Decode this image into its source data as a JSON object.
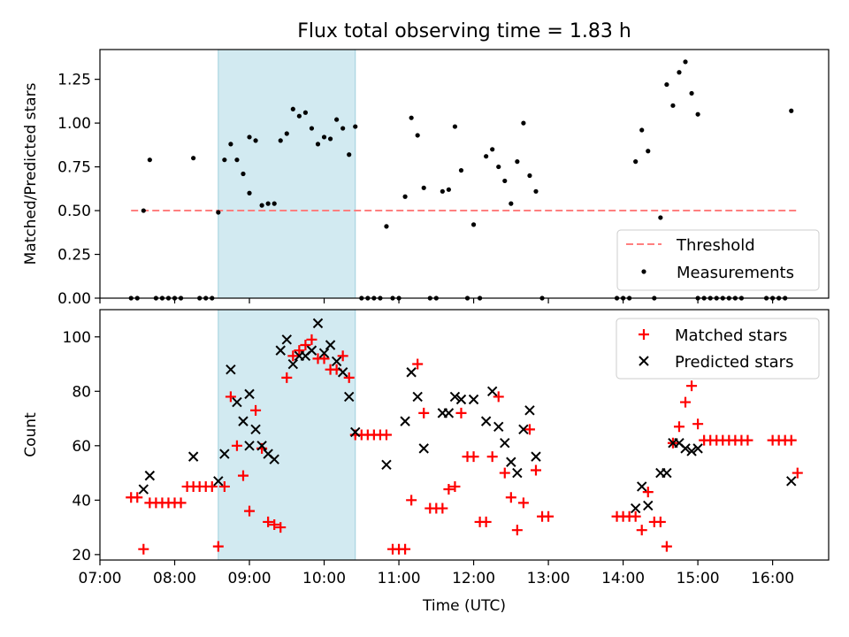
{
  "figure": {
    "title": "Flux total observing time = 1.83 h",
    "highlight_color": "#add8e6",
    "highlight_span": [
      "08:35",
      "10:25"
    ]
  },
  "chart_data": [
    {
      "id": "ratio",
      "type": "scatter",
      "ylabel": "Matched/Predicted stars",
      "xlim": [
        "07:00",
        "16:45"
      ],
      "ylim": [
        0,
        1.42
      ],
      "yticks": [
        0.0,
        0.25,
        0.5,
        0.75,
        1.0,
        1.25
      ],
      "ytick_labels": [
        "0.00",
        "0.25",
        "0.50",
        "0.75",
        "1.00",
        "1.25"
      ],
      "legend_placement": "lower-right",
      "threshold": {
        "name": "Threshold",
        "value": 0.5,
        "x": [
          "07:25",
          "16:20"
        ],
        "color": "#ff7f7f",
        "style": "dashed"
      },
      "series": [
        {
          "name": "Measurements",
          "color": "#000000",
          "marker": "dot",
          "points": [
            [
              "07:25",
              0
            ],
            [
              "07:30",
              0
            ],
            [
              "07:35",
              0.5
            ],
            [
              "07:40",
              0.79
            ],
            [
              "07:45",
              0
            ],
            [
              "07:50",
              0
            ],
            [
              "07:55",
              0
            ],
            [
              "08:00",
              0
            ],
            [
              "08:05",
              0
            ],
            [
              "08:15",
              0.8
            ],
            [
              "08:20",
              0
            ],
            [
              "08:25",
              0
            ],
            [
              "08:30",
              0
            ],
            [
              "08:35",
              0.49
            ],
            [
              "08:40",
              0.79
            ],
            [
              "08:45",
              0.88
            ],
            [
              "08:50",
              0.79
            ],
            [
              "08:55",
              0.71
            ],
            [
              "09:00",
              0.6
            ],
            [
              "09:00",
              0.92
            ],
            [
              "09:05",
              0.9
            ],
            [
              "09:10",
              0.53
            ],
            [
              "09:15",
              0.54
            ],
            [
              "09:20",
              0.54
            ],
            [
              "09:25",
              0.9
            ],
            [
              "09:30",
              0.94
            ],
            [
              "09:35",
              1.08
            ],
            [
              "09:40",
              1.04
            ],
            [
              "09:45",
              1.06
            ],
            [
              "09:50",
              0.97
            ],
            [
              "09:55",
              0.88
            ],
            [
              "10:00",
              0.92
            ],
            [
              "10:05",
              0.91
            ],
            [
              "10:10",
              1.02
            ],
            [
              "10:15",
              0.97
            ],
            [
              "10:20",
              0.82
            ],
            [
              "10:25",
              0.98
            ],
            [
              "10:30",
              0
            ],
            [
              "10:35",
              0
            ],
            [
              "10:40",
              0
            ],
            [
              "10:45",
              0
            ],
            [
              "10:50",
              0.41
            ],
            [
              "10:55",
              0
            ],
            [
              "11:00",
              0
            ],
            [
              "11:05",
              0.58
            ],
            [
              "11:10",
              1.03
            ],
            [
              "11:15",
              0.93
            ],
            [
              "11:20",
              0.63
            ],
            [
              "11:25",
              0
            ],
            [
              "11:30",
              0
            ],
            [
              "11:35",
              0.61
            ],
            [
              "11:40",
              0.62
            ],
            [
              "11:45",
              0.98
            ],
            [
              "11:50",
              0.73
            ],
            [
              "11:55",
              0
            ],
            [
              "12:00",
              0.42
            ],
            [
              "12:05",
              0
            ],
            [
              "12:10",
              0.81
            ],
            [
              "12:15",
              0.85
            ],
            [
              "12:20",
              0.75
            ],
            [
              "12:25",
              0.67
            ],
            [
              "12:30",
              0.54
            ],
            [
              "12:35",
              0.78
            ],
            [
              "12:40",
              1.0
            ],
            [
              "12:45",
              0.7
            ],
            [
              "12:50",
              0.61
            ],
            [
              "12:55",
              0
            ],
            [
              "13:55",
              0
            ],
            [
              "14:00",
              0
            ],
            [
              "14:05",
              0
            ],
            [
              "14:10",
              0.78
            ],
            [
              "14:15",
              0.96
            ],
            [
              "14:20",
              0.84
            ],
            [
              "14:25",
              0
            ],
            [
              "14:30",
              0.46
            ],
            [
              "14:35",
              1.22
            ],
            [
              "14:40",
              1.1
            ],
            [
              "14:45",
              1.29
            ],
            [
              "14:50",
              1.35
            ],
            [
              "14:55",
              1.17
            ],
            [
              "15:00",
              1.05
            ],
            [
              "15:00",
              0
            ],
            [
              "15:05",
              0
            ],
            [
              "15:10",
              0
            ],
            [
              "15:15",
              0
            ],
            [
              "15:20",
              0
            ],
            [
              "15:25",
              0
            ],
            [
              "15:30",
              0
            ],
            [
              "15:35",
              0
            ],
            [
              "15:55",
              0
            ],
            [
              "16:00",
              0
            ],
            [
              "16:05",
              0
            ],
            [
              "16:10",
              0
            ],
            [
              "16:15",
              1.07
            ]
          ]
        }
      ]
    },
    {
      "id": "counts",
      "type": "scatter",
      "xlabel": "Time (UTC)",
      "ylabel": "Count",
      "xlim": [
        "07:00",
        "16:45"
      ],
      "ylim": [
        18,
        110
      ],
      "yticks": [
        20,
        40,
        60,
        80,
        100
      ],
      "ytick_labels": [
        "20",
        "40",
        "60",
        "80",
        "100"
      ],
      "xtick_labels": [
        "07:00",
        "08:00",
        "09:00",
        "10:00",
        "11:00",
        "12:00",
        "13:00",
        "14:00",
        "15:00",
        "16:00"
      ],
      "legend_placement": "top-right",
      "series": [
        {
          "name": "Matched stars",
          "color": "#ff0000",
          "marker": "plus",
          "points": [
            [
              "07:25",
              41
            ],
            [
              "07:30",
              41
            ],
            [
              "07:35",
              22
            ],
            [
              "07:40",
              39
            ],
            [
              "07:45",
              39
            ],
            [
              "07:50",
              39
            ],
            [
              "07:55",
              39
            ],
            [
              "08:00",
              39
            ],
            [
              "08:05",
              39
            ],
            [
              "08:10",
              45
            ],
            [
              "08:15",
              45
            ],
            [
              "08:20",
              45
            ],
            [
              "08:25",
              45
            ],
            [
              "08:30",
              45
            ],
            [
              "08:35",
              23
            ],
            [
              "08:40",
              45
            ],
            [
              "08:45",
              78
            ],
            [
              "08:50",
              60
            ],
            [
              "08:55",
              49
            ],
            [
              "09:00",
              36
            ],
            [
              "09:05",
              73
            ],
            [
              "09:10",
              59
            ],
            [
              "09:15",
              32
            ],
            [
              "09:20",
              31
            ],
            [
              "09:25",
              30
            ],
            [
              "09:30",
              85
            ],
            [
              "09:35",
              93
            ],
            [
              "09:40",
              95
            ],
            [
              "09:45",
              97
            ],
            [
              "09:50",
              99
            ],
            [
              "09:55",
              92
            ],
            [
              "10:00",
              92
            ],
            [
              "10:05",
              88
            ],
            [
              "10:10",
              88
            ],
            [
              "10:15",
              93
            ],
            [
              "10:20",
              85
            ],
            [
              "10:25",
              64
            ],
            [
              "10:30",
              64
            ],
            [
              "10:35",
              64
            ],
            [
              "10:40",
              64
            ],
            [
              "10:45",
              64
            ],
            [
              "10:50",
              64
            ],
            [
              "10:55",
              22
            ],
            [
              "11:00",
              22
            ],
            [
              "11:05",
              22
            ],
            [
              "11:10",
              40
            ],
            [
              "11:15",
              90
            ],
            [
              "11:20",
              72
            ],
            [
              "11:25",
              37
            ],
            [
              "11:30",
              37
            ],
            [
              "11:35",
              37
            ],
            [
              "11:40",
              44
            ],
            [
              "11:45",
              45
            ],
            [
              "11:50",
              72
            ],
            [
              "11:55",
              56
            ],
            [
              "12:00",
              56
            ],
            [
              "12:05",
              32
            ],
            [
              "12:10",
              32
            ],
            [
              "12:15",
              56
            ],
            [
              "12:20",
              78
            ],
            [
              "12:25",
              50
            ],
            [
              "12:30",
              41
            ],
            [
              "12:35",
              29
            ],
            [
              "12:40",
              39
            ],
            [
              "12:45",
              66
            ],
            [
              "12:50",
              51
            ],
            [
              "12:55",
              34
            ],
            [
              "13:00",
              34
            ],
            [
              "13:55",
              34
            ],
            [
              "14:00",
              34
            ],
            [
              "14:05",
              34
            ],
            [
              "14:10",
              34
            ],
            [
              "14:15",
              29
            ],
            [
              "14:20",
              43
            ],
            [
              "14:25",
              32
            ],
            [
              "14:30",
              32
            ],
            [
              "14:35",
              23
            ],
            [
              "14:40",
              61
            ],
            [
              "14:45",
              67
            ],
            [
              "14:50",
              76
            ],
            [
              "14:55",
              82
            ],
            [
              "15:00",
              68
            ],
            [
              "15:05",
              62
            ],
            [
              "15:10",
              62
            ],
            [
              "15:15",
              62
            ],
            [
              "15:20",
              62
            ],
            [
              "15:25",
              62
            ],
            [
              "15:30",
              62
            ],
            [
              "15:35",
              62
            ],
            [
              "15:40",
              62
            ],
            [
              "16:00",
              62
            ],
            [
              "16:05",
              62
            ],
            [
              "16:10",
              62
            ],
            [
              "16:15",
              62
            ],
            [
              "16:20",
              50
            ]
          ]
        },
        {
          "name": "Predicted stars",
          "color": "#000000",
          "marker": "x",
          "points": [
            [
              "07:35",
              44
            ],
            [
              "07:40",
              49
            ],
            [
              "08:15",
              56
            ],
            [
              "08:35",
              47
            ],
            [
              "08:40",
              57
            ],
            [
              "08:45",
              88
            ],
            [
              "08:50",
              76
            ],
            [
              "08:55",
              69
            ],
            [
              "09:00",
              60
            ],
            [
              "09:00",
              79
            ],
            [
              "09:05",
              66
            ],
            [
              "09:10",
              60
            ],
            [
              "09:15",
              57
            ],
            [
              "09:20",
              55
            ],
            [
              "09:25",
              95
            ],
            [
              "09:30",
              99
            ],
            [
              "09:35",
              90
            ],
            [
              "09:40",
              93
            ],
            [
              "09:45",
              93
            ],
            [
              "09:50",
              95
            ],
            [
              "09:55",
              105
            ],
            [
              "10:00",
              94
            ],
            [
              "10:05",
              97
            ],
            [
              "10:10",
              91
            ],
            [
              "10:15",
              87
            ],
            [
              "10:20",
              78
            ],
            [
              "10:25",
              65
            ],
            [
              "10:50",
              53
            ],
            [
              "11:05",
              69
            ],
            [
              "11:10",
              87
            ],
            [
              "11:15",
              78
            ],
            [
              "11:20",
              59
            ],
            [
              "11:35",
              72
            ],
            [
              "11:40",
              72
            ],
            [
              "11:45",
              78
            ],
            [
              "11:50",
              77
            ],
            [
              "12:00",
              77
            ],
            [
              "12:10",
              69
            ],
            [
              "12:15",
              80
            ],
            [
              "12:20",
              67
            ],
            [
              "12:25",
              61
            ],
            [
              "12:30",
              54
            ],
            [
              "12:35",
              50
            ],
            [
              "12:40",
              66
            ],
            [
              "12:45",
              73
            ],
            [
              "12:50",
              56
            ],
            [
              "14:10",
              37
            ],
            [
              "14:15",
              45
            ],
            [
              "14:20",
              38
            ],
            [
              "14:30",
              50
            ],
            [
              "14:35",
              50
            ],
            [
              "14:40",
              61
            ],
            [
              "14:45",
              61
            ],
            [
              "14:50",
              59
            ],
            [
              "14:55",
              58
            ],
            [
              "15:00",
              59
            ],
            [
              "16:15",
              47
            ]
          ]
        }
      ]
    }
  ]
}
